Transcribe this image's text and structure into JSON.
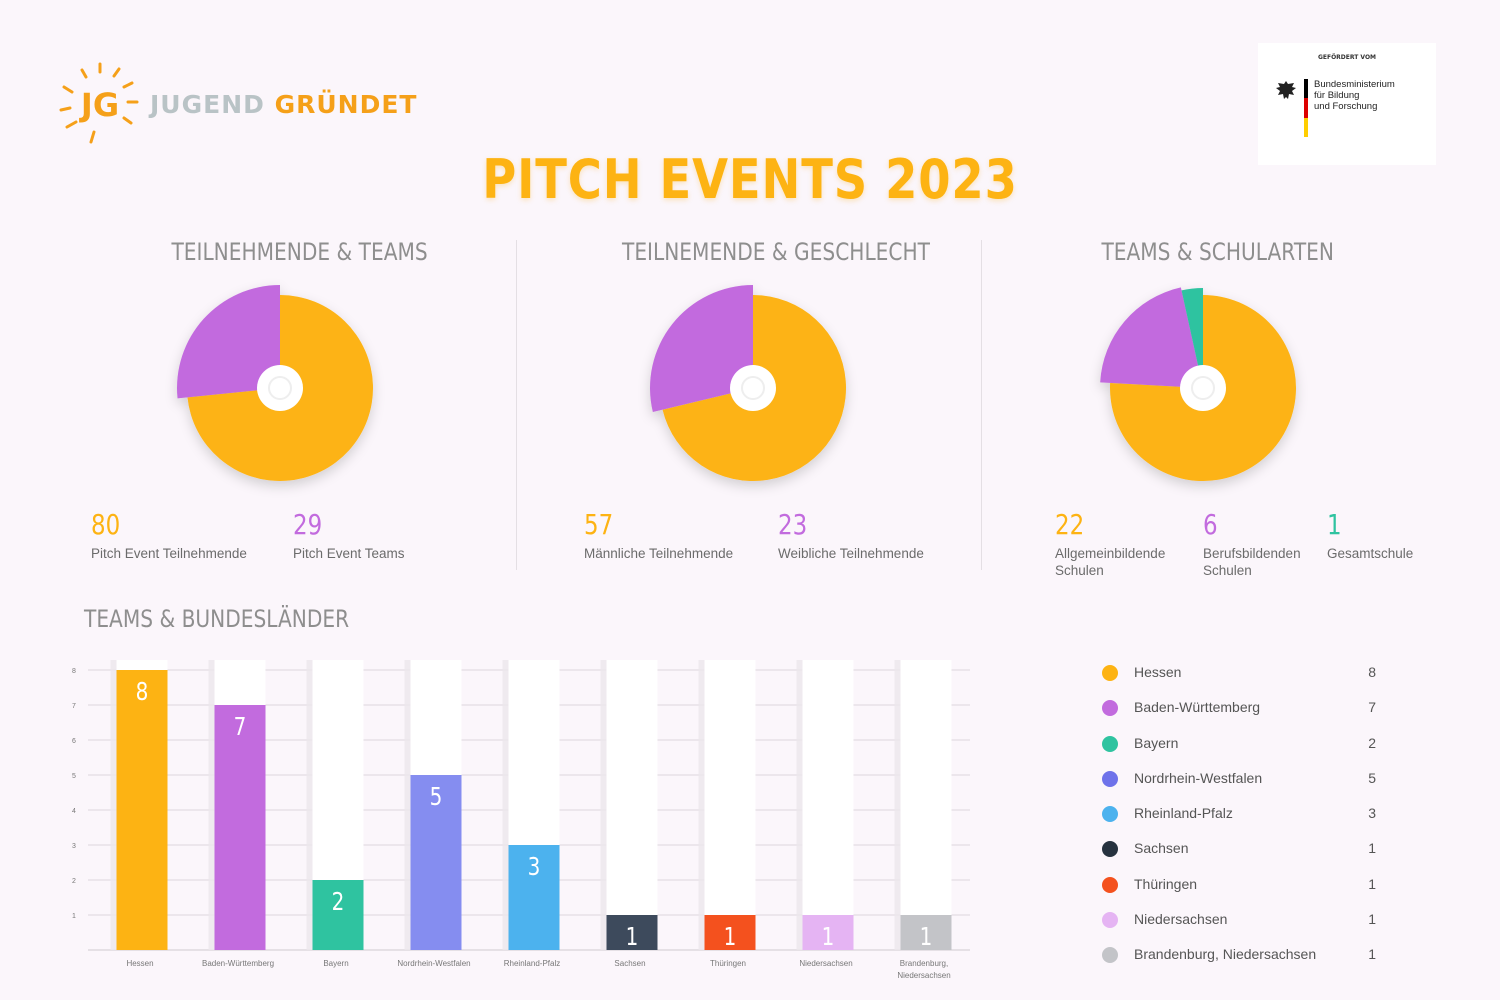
{
  "logo": {
    "word1": "JUGEND",
    "word2": "GRÜNDET",
    "mark": "JG"
  },
  "sponsor": {
    "label": "GEFÖRDERT VOM",
    "line1": "Bundesministerium",
    "line2": "für Bildung",
    "line3": "und Forschung"
  },
  "page_title": "PITCH EVENTS 2023",
  "colors": {
    "orange": "#fdb313",
    "purple": "#c26bde",
    "teal": "#2fc3a0",
    "title": "#fdb313"
  },
  "chart_data": [
    {
      "type": "pie",
      "title": "TEILNEHMENDE & TEAMS",
      "slices": [
        {
          "label": "Pitch Event Teilnehmende",
          "value": 80,
          "color": "#fdb313"
        },
        {
          "label": "Pitch Event Teams",
          "value": 29,
          "color": "#c26bde"
        }
      ]
    },
    {
      "type": "pie",
      "title": "TEILNEMENDE & GESCHLECHT",
      "slices": [
        {
          "label": "Männliche Teilnehmende",
          "value": 57,
          "color": "#fdb313"
        },
        {
          "label": "Weibliche Teilnehmende",
          "value": 23,
          "color": "#c26bde"
        }
      ]
    },
    {
      "type": "pie",
      "title": "TEAMS & SCHULARTEN",
      "slices": [
        {
          "label_line1": "Allgemeinbildende",
          "label_line2": "Schulen",
          "value": 22,
          "color": "#fdb313"
        },
        {
          "label_line1": "Berufsbildenden",
          "label_line2": "Schulen",
          "value": 6,
          "color": "#c26bde"
        },
        {
          "label_line1": "Gesamtschule",
          "label_line2": "",
          "value": 1,
          "color": "#2fc3a0"
        }
      ]
    },
    {
      "type": "bar",
      "title": "TEAMS & BUNDESLÄNDER",
      "ylim": [
        0,
        8
      ],
      "yticks": [
        "1",
        "2",
        "3",
        "4",
        "5",
        "6",
        "7",
        "8"
      ],
      "categories": [
        "Hessen",
        "Baden-Württemberg",
        "Bayern",
        "Nordrhein-Westfalen",
        "Rheinland-Pfalz",
        "Sachsen",
        "Thüringen",
        "Niedersachsen",
        "Brandenburg, Niedersachsen"
      ],
      "axis_labels": [
        [
          "Hessen"
        ],
        [
          "Baden-Württemberg"
        ],
        [
          "Bayern"
        ],
        [
          "Nordrhein-Westfalen"
        ],
        [
          "Rheinland-Pfalz"
        ],
        [
          "Sachsen"
        ],
        [
          "Thüringen"
        ],
        [
          "Niedersachsen"
        ],
        [
          "Brandenburg,",
          "Niedersachsen"
        ]
      ],
      "values": [
        8,
        7,
        2,
        5,
        3,
        1,
        1,
        1,
        1
      ],
      "value_labels": [
        "8",
        "7",
        "2",
        "5",
        "3",
        "1",
        "1",
        "1",
        "1"
      ],
      "colors": [
        "#fdb313",
        "#c26bde",
        "#2fc3a0",
        "#858df0",
        "#4cb2ee",
        "#3d4a5c",
        "#f4511e",
        "#e5b4f3",
        "#c3c4c8"
      ]
    }
  ],
  "legend": {
    "items": [
      {
        "name": "Hessen",
        "value": "8",
        "color": "#fdb313"
      },
      {
        "name": "Baden-Württemberg",
        "value": "7",
        "color": "#c26bde"
      },
      {
        "name": "Bayern",
        "value": "2",
        "color": "#2fc3a0"
      },
      {
        "name": "Nordrhein-Westfalen",
        "value": "5",
        "color": "#6e72ea"
      },
      {
        "name": "Rheinland-Pfalz",
        "value": "3",
        "color": "#4cb2ee"
      },
      {
        "name": "Sachsen",
        "value": "1",
        "color": "#26323f"
      },
      {
        "name": "Thüringen",
        "value": "1",
        "color": "#f4511e"
      },
      {
        "name": "Niedersachsen",
        "value": "1",
        "color": "#e5b4f3"
      },
      {
        "name": "Brandenburg, Niedersachsen",
        "value": "1",
        "color": "#c3c4c8"
      }
    ]
  }
}
